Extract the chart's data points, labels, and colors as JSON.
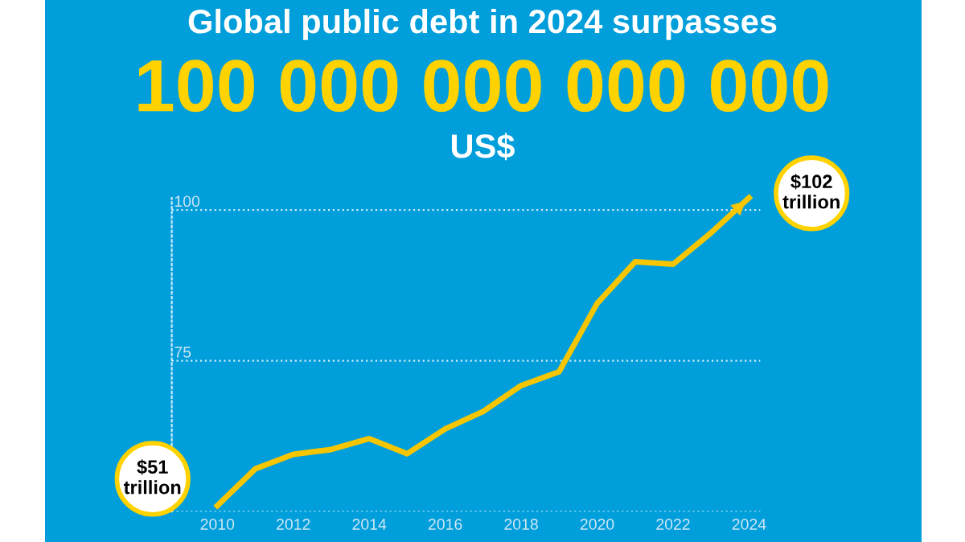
{
  "chart_data": {
    "type": "line",
    "title": "Global public debt in 2024 surpasses",
    "subtitle": "100 000 000 000 000",
    "annotations": [
      "US$",
      {
        "text": "$51\ntrillion",
        "x": 2010,
        "y": 51
      },
      {
        "text": "$102\ntrillion",
        "x": 2024,
        "y": 102
      }
    ],
    "x": [
      2010,
      2011,
      2012,
      2013,
      2014,
      2015,
      2016,
      2017,
      2018,
      2019,
      2020,
      2021,
      2022,
      2023,
      2024
    ],
    "series": [
      {
        "color": "#f7c600",
        "values": [
          51,
          57.1,
          59.5,
          60.3,
          62.1,
          59.6,
          63.7,
          66.6,
          70.9,
          73.2,
          84.5,
          91.4,
          91.0,
          96.2,
          102
        ]
      }
    ],
    "xlim": [
      2008.8,
      2024.3
    ],
    "xticks": [
      2010,
      2012,
      2014,
      2016,
      2018,
      2020,
      2022,
      2024
    ],
    "ylim": [
      50,
      102
    ],
    "yticks": [
      {
        "value": 50,
        "label": null
      },
      75,
      100
    ],
    "grid": "y",
    "legend": false,
    "marker": "none",
    "line_style": "solid"
  }
}
